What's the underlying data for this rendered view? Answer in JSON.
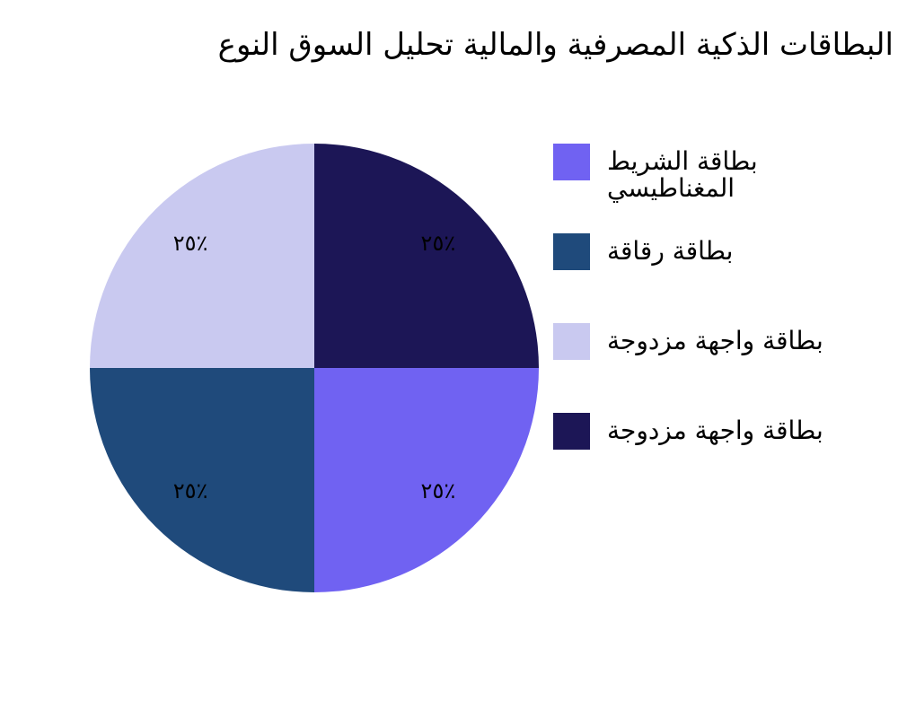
{
  "chart_data": {
    "type": "pie",
    "title": "البطاقات الذكية المصرفية والمالية تحليل السوق النوع",
    "categories": [
      "بطاقة الشريط المغناطيسي",
      "بطاقة رقاقة",
      "بطاقة واجهة مزدوجة",
      "بطاقة واجهة مزدوجة"
    ],
    "values": [
      25,
      25,
      25,
      25
    ],
    "value_labels": [
      "٢٥٪",
      "٢٥٪",
      "٢٥٪",
      "٢٥٪"
    ],
    "colors": [
      "#7062f2",
      "#1f4a7b",
      "#c9c9f0",
      "#1c1656"
    ],
    "legend": "right"
  }
}
